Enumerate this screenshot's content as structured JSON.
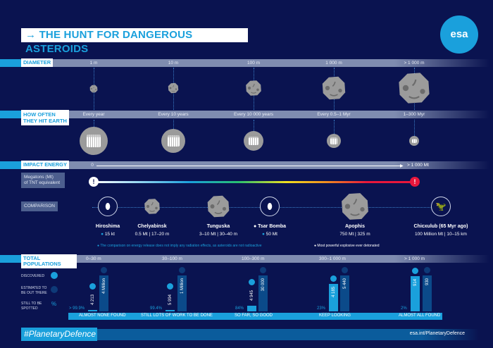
{
  "title": "→ THE HUNT FOR DANGEROUS ASTEROIDS",
  "logo": "esa",
  "diameter": {
    "label": "DIAMETER",
    "ticks": [
      "1 m",
      "10 m",
      "100 m",
      "1 000 m",
      "> 1 000 m"
    ]
  },
  "frequency": {
    "label_line1": "HOW OFTEN",
    "label_line2": "THEY HIT EARTH",
    "ticks": [
      "Every year",
      "Every 10 years",
      "Every 10 000 years",
      "Every 0.5–1 Myr",
      "1–300 Myr"
    ]
  },
  "impact": {
    "label": "IMPACT ENERGY",
    "start": "0",
    "end": "> 1 000 Mt",
    "unit_line1": "Megatons (Mt)",
    "unit_line2": "of TNT equivalent",
    "gradient_start_color": "#ffffff",
    "gradient_end_color": "#e8173c"
  },
  "comparison": {
    "label": "COMPARISON",
    "items": [
      {
        "name": "Hiroshima",
        "detail": "15 kt",
        "icon": "bomb-icon",
        "marker": "blue"
      },
      {
        "name": "Chelyabinsk",
        "detail": "0.5 Mt | 17–20 m",
        "icon": "asteroid-icon"
      },
      {
        "name": "Tunguska",
        "detail": "3–10 Mt | 30–40 m",
        "icon": "asteroid-icon"
      },
      {
        "name": "Tsar Bomba",
        "detail": "50 Mt",
        "icon": "bomb-icon",
        "marker": "white"
      },
      {
        "name": "Apophis",
        "detail": "750 Mt | 325 m",
        "icon": "asteroid-icon"
      },
      {
        "name": "Chicxulub (65 Myr ago)",
        "detail": "100 Million Mt | 10–15 km",
        "icon": "dinosaur-icon"
      }
    ],
    "note_radiation": "The comparison on energy release does not imply any radiation effects, as asteroids are not radioactive",
    "note_explosive": "Most powerful explosive ever detonated"
  },
  "populations": {
    "label": "TOTAL POPULATIONS",
    "legend": {
      "discovered": "DISCOVERED",
      "estimated_line1": "ESTIMATED TO",
      "estimated_line2": "BE OUT THERE",
      "spotted_line1": "STILL TO BE",
      "spotted_line2": "SPOTTED",
      "pct_symbol": "%"
    },
    "groups": [
      {
        "range": "0–30 m",
        "discovered": 4213,
        "discovered_label": "4 213",
        "estimated": 4000000,
        "estimated_label": "4 Million",
        "still_to_spot": "> 99.9%",
        "status": "ALMOST NONE FOUND"
      },
      {
        "range": "30–100 m",
        "discovered": 5994,
        "discovered_label": "5 994",
        "estimated": 1000000,
        "estimated_label": "1 Million",
        "still_to_spot": "99.4%",
        "status": "STILL LOTS OF WORK TO BE DONE"
      },
      {
        "range": "100–300 m",
        "discovered": 4945,
        "discovered_label": "4 945",
        "estimated": 30000,
        "estimated_label": "30 000",
        "still_to_spot": "84%",
        "status": "SO FAR, SO GOOD"
      },
      {
        "range": "300–1 000 m",
        "discovered": 4185,
        "discovered_label": "4 185",
        "estimated": 5440,
        "estimated_label": "5 440",
        "still_to_spot": "23%",
        "status": "KEEP LOOKING"
      },
      {
        "range": "> 1 000 m",
        "discovered": 914,
        "discovered_label": "914",
        "estimated": 930,
        "estimated_label": "930",
        "still_to_spot": "2%",
        "status": "ALMOST ALL FOUND"
      }
    ]
  },
  "footer": {
    "hashtag": "#PlanetaryDefence",
    "url": "esa.int/PlanetaryDefence"
  },
  "colors": {
    "background": "#0a1350",
    "accent": "#1aa0dc",
    "discovered_bar": "#1aa0dc",
    "estimated_bar": "#0b4a8a"
  }
}
